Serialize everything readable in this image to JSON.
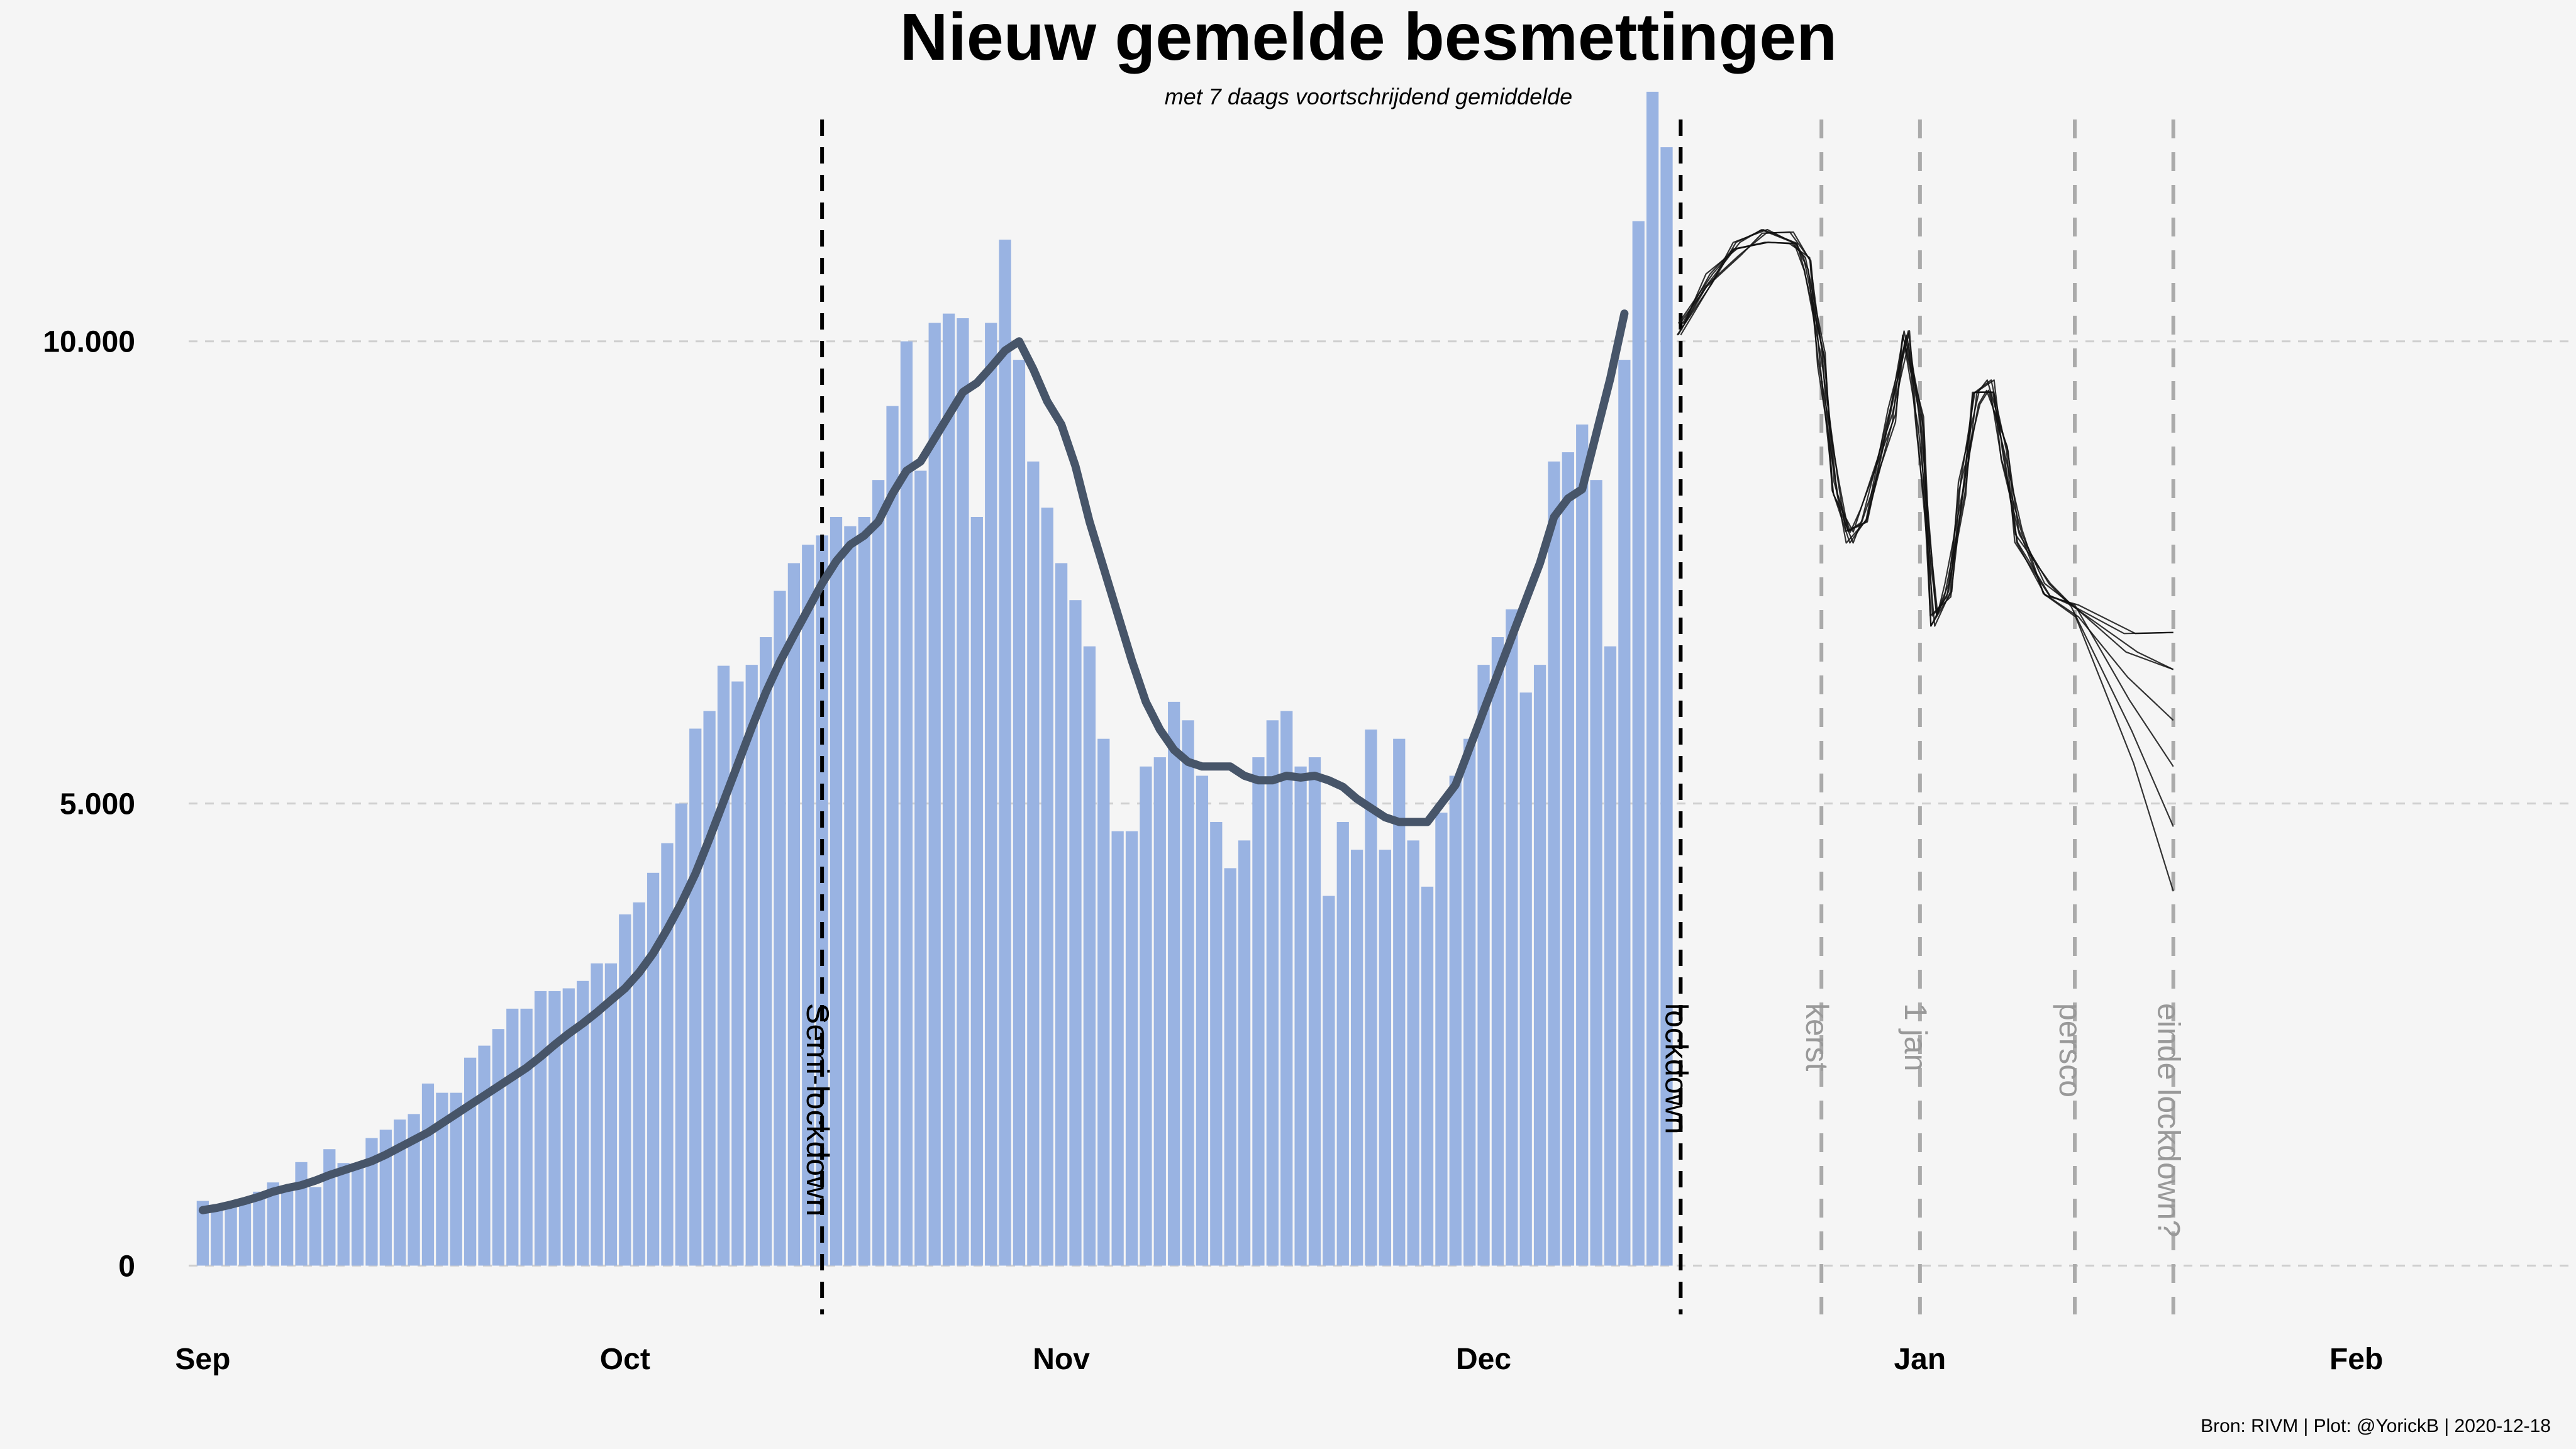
{
  "chart_data": {
    "type": "bar",
    "title": "Nieuw gemelde besmettingen",
    "subtitle": "met 7 daags voortschrijdend gemiddelde",
    "caption": "Bron: RIVM | Plot: @YorickB |  2020-12-18",
    "x_start": "2020-09-01",
    "xlim": [
      "2020-08-31",
      "2021-02-15"
    ],
    "ylim": [
      -800,
      12400
    ],
    "y_ticks": [
      {
        "value": 0,
        "label": "0"
      },
      {
        "value": 5000,
        "label": "5.000"
      },
      {
        "value": 10000,
        "label": "10.000"
      }
    ],
    "x_ticks": [
      {
        "date": "2020-09-01",
        "label": "Sep"
      },
      {
        "date": "2020-10-01",
        "label": "Oct"
      },
      {
        "date": "2020-11-01",
        "label": "Nov"
      },
      {
        "date": "2020-12-01",
        "label": "Dec"
      },
      {
        "date": "2021-01-01",
        "label": "Jan"
      },
      {
        "date": "2021-02-01",
        "label": "Feb"
      }
    ],
    "bar_color": "#99b3e2",
    "line_color": "#475569",
    "grid": true,
    "daily_cases": [
      700,
      620,
      660,
      670,
      800,
      900,
      860,
      1120,
      850,
      1260,
      1110,
      1110,
      1380,
      1470,
      1580,
      1640,
      1970,
      1870,
      1870,
      2250,
      2380,
      2560,
      2780,
      2780,
      2970,
      2970,
      3000,
      3080,
      3270,
      3270,
      3800,
      3930,
      4250,
      4570,
      5000,
      5810,
      6000,
      6490,
      6320,
      6500,
      6800,
      7300,
      7600,
      7800,
      7900,
      8100,
      8000,
      8100,
      8500,
      9300,
      10000,
      8600,
      10200,
      10300,
      10250,
      8100,
      10200,
      11100,
      9800,
      8700,
      8200,
      7600,
      7200,
      6700,
      5700,
      4700,
      4700,
      5400,
      5500,
      6100,
      5900,
      5300,
      4800,
      4300,
      4600,
      5500,
      5900,
      6000,
      5400,
      5500,
      4000,
      4800,
      4500,
      5800,
      4500,
      5700,
      4600,
      4100,
      4900,
      5300,
      5700,
      6500,
      6800,
      7100,
      6200,
      6500,
      8700,
      8800,
      9100,
      8500,
      6700,
      9800,
      11300,
      12700,
      12100
    ],
    "rolling_avg_7d": [
      600,
      625,
      660,
      700,
      745,
      800,
      840,
      870,
      920,
      980,
      1030,
      1080,
      1130,
      1200,
      1280,
      1360,
      1440,
      1540,
      1640,
      1740,
      1840,
      1940,
      2040,
      2140,
      2260,
      2390,
      2510,
      2620,
      2740,
      2870,
      3000,
      3170,
      3380,
      3640,
      3920,
      4240,
      4620,
      5020,
      5420,
      5820,
      6200,
      6530,
      6820,
      7100,
      7380,
      7620,
      7800,
      7900,
      8050,
      8350,
      8600,
      8700,
      8950,
      9200,
      9450,
      9550,
      9720,
      9900,
      10000,
      9700,
      9350,
      9100,
      8650,
      8050,
      7550,
      7050,
      6550,
      6100,
      5800,
      5580,
      5450,
      5400,
      5400,
      5400,
      5300,
      5250,
      5250,
      5300,
      5280,
      5300,
      5250,
      5180,
      5050,
      4950,
      4850,
      4800,
      4800,
      4800,
      5000,
      5200,
      5600,
      6000,
      6400,
      6800,
      7200,
      7600,
      8100,
      8300,
      8400,
      9000,
      9600,
      10300
    ],
    "events": [
      {
        "date": "2020-10-15",
        "label": "Semi-lockdown",
        "style": "dark"
      },
      {
        "date": "2020-12-15",
        "label": "lockdown",
        "style": "dark"
      },
      {
        "date": "2020-12-25",
        "label": "kerst",
        "style": "grey"
      },
      {
        "date": "2021-01-01",
        "label": "1 jan",
        "style": "grey"
      },
      {
        "date": "2021-01-12",
        "label": "persco",
        "style": "grey"
      },
      {
        "date": "2021-01-19",
        "label": "einde lockdown?",
        "style": "grey"
      }
    ],
    "sketch_projection": [
      {
        "date": "2020-12-15",
        "value": 10150
      },
      {
        "date": "2020-12-17",
        "value": 10650
      },
      {
        "date": "2020-12-19",
        "value": 11000
      },
      {
        "date": "2020-12-21",
        "value": 11150
      },
      {
        "date": "2020-12-23",
        "value": 11100
      },
      {
        "date": "2020-12-24",
        "value": 10850
      },
      {
        "date": "2020-12-25",
        "value": 9800
      },
      {
        "date": "2020-12-26",
        "value": 8400
      },
      {
        "date": "2020-12-27",
        "value": 7900
      },
      {
        "date": "2020-12-28",
        "value": 8100
      },
      {
        "date": "2020-12-30",
        "value": 9200
      },
      {
        "date": "2020-12-31",
        "value": 10050
      },
      {
        "date": "2021-01-01",
        "value": 9100
      },
      {
        "date": "2021-01-02",
        "value": 7000
      },
      {
        "date": "2021-01-03",
        "value": 7300
      },
      {
        "date": "2021-01-04",
        "value": 8400
      },
      {
        "date": "2021-01-05",
        "value": 9400
      },
      {
        "date": "2021-01-06",
        "value": 9500
      },
      {
        "date": "2021-01-07",
        "value": 8800
      },
      {
        "date": "2021-01-08",
        "value": 7900
      },
      {
        "date": "2021-01-10",
        "value": 7300
      },
      {
        "date": "2021-01-12",
        "value": 7100
      }
    ],
    "sketch_fan_end": {
      "date": "2021-01-19",
      "values": [
        6850,
        6450,
        5900,
        5400,
        4750,
        4050
      ]
    }
  }
}
